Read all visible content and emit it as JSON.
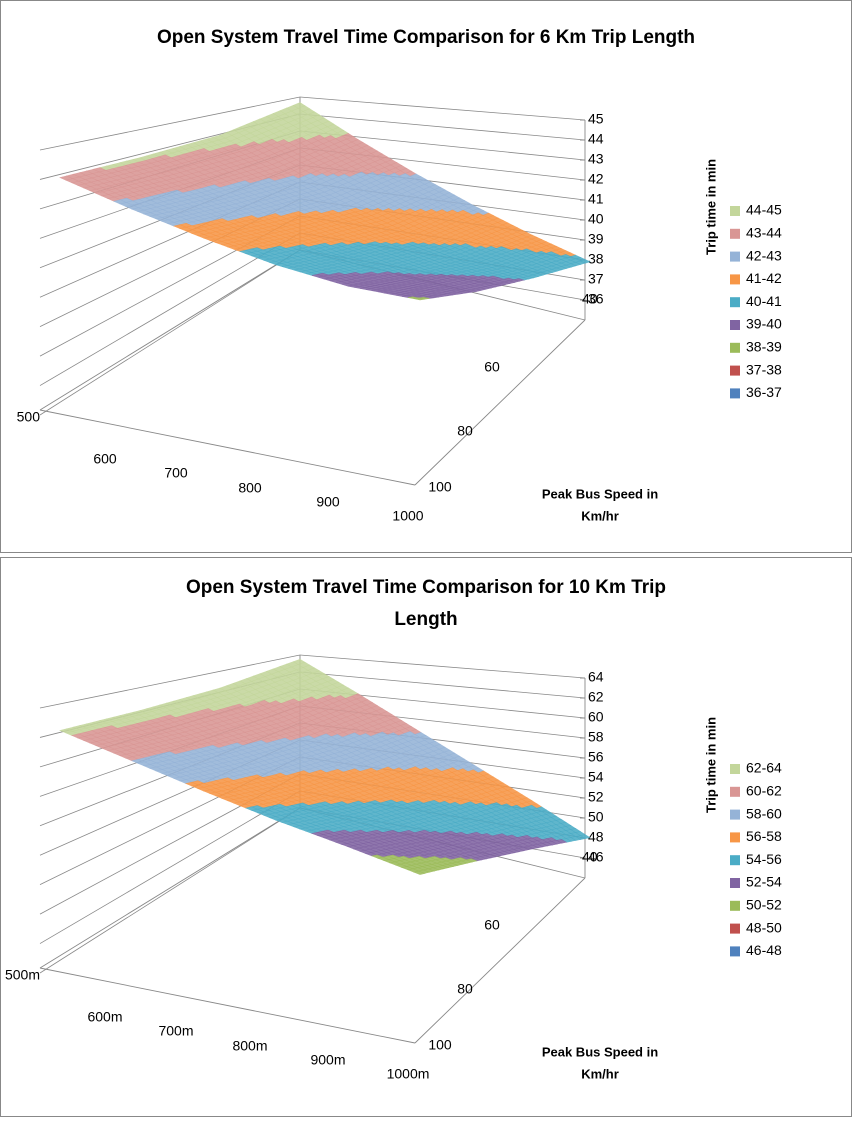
{
  "chart_data": [
    {
      "type": "surface",
      "title": [
        "Open System Travel Time Comparison for 6 Km Trip Length"
      ],
      "categories": [
        "500",
        "600",
        "700",
        "800",
        "900",
        "1000"
      ],
      "series": [
        {
          "name": "40",
          "values": [
            44.9,
            43.9,
            43.0,
            42.2,
            41.5,
            40.9
          ]
        },
        {
          "name": "60",
          "values": [
            44.3,
            43.2,
            42.2,
            41.3,
            40.6,
            40.1
          ]
        },
        {
          "name": "80",
          "values": [
            44.1,
            42.9,
            41.8,
            40.8,
            40.0,
            39.4
          ]
        },
        {
          "name": "100",
          "values": [
            44.0,
            42.7,
            41.5,
            40.4,
            39.5,
            38.9
          ]
        }
      ],
      "y_label": "Trip time in min",
      "x_label": [
        "Peak Bus Speed in",
        "Km/hr"
      ],
      "ylim": [
        36,
        45
      ],
      "yticks": [
        36,
        37,
        38,
        39,
        40,
        41,
        42,
        43,
        44,
        45
      ],
      "bands": [
        {
          "name": "36-37",
          "color": "#4f81bd"
        },
        {
          "name": "37-38",
          "color": "#c0504d"
        },
        {
          "name": "38-39",
          "color": "#9bbb59"
        },
        {
          "name": "39-40",
          "color": "#8064a2"
        },
        {
          "name": "40-41",
          "color": "#4bacc6"
        },
        {
          "name": "41-42",
          "color": "#f79646"
        },
        {
          "name": "42-43",
          "color": "#95b3d7"
        },
        {
          "name": "43-44",
          "color": "#d99694"
        },
        {
          "name": "44-45",
          "color": "#c3d69b"
        }
      ]
    },
    {
      "type": "surface",
      "title": [
        "Open System Travel Time Comparison for 10 Km Trip",
        "Length"
      ],
      "categories": [
        "500m",
        "600m",
        "700m",
        "800m",
        "900m",
        "1000m"
      ],
      "series": [
        {
          "name": "40",
          "values": [
            63.9,
            62.1,
            60.2,
            58.3,
            56.4,
            54.4
          ]
        },
        {
          "name": "60",
          "values": [
            63.0,
            60.9,
            58.9,
            56.9,
            55.0,
            53.2
          ]
        },
        {
          "name": "80",
          "values": [
            62.6,
            60.3,
            58.0,
            55.8,
            53.8,
            51.9
          ]
        },
        {
          "name": "100",
          "values": [
            62.4,
            59.9,
            57.4,
            55.0,
            52.8,
            50.5
          ]
        }
      ],
      "y_label": "Trip time in min",
      "x_label": [
        "Peak Bus Speed in",
        "Km/hr"
      ],
      "ylim": [
        46,
        64
      ],
      "yticks": [
        46,
        48,
        50,
        52,
        54,
        56,
        58,
        60,
        62,
        64
      ],
      "bands": [
        {
          "name": "46-48",
          "color": "#4f81bd"
        },
        {
          "name": "48-50",
          "color": "#c0504d"
        },
        {
          "name": "50-52",
          "color": "#9bbb59"
        },
        {
          "name": "52-54",
          "color": "#8064a2"
        },
        {
          "name": "54-56",
          "color": "#4bacc6"
        },
        {
          "name": "56-58",
          "color": "#f79646"
        },
        {
          "name": "58-60",
          "color": "#95b3d7"
        },
        {
          "name": "60-62",
          "color": "#d99694"
        },
        {
          "name": "62-64",
          "color": "#c3d69b"
        }
      ]
    }
  ]
}
